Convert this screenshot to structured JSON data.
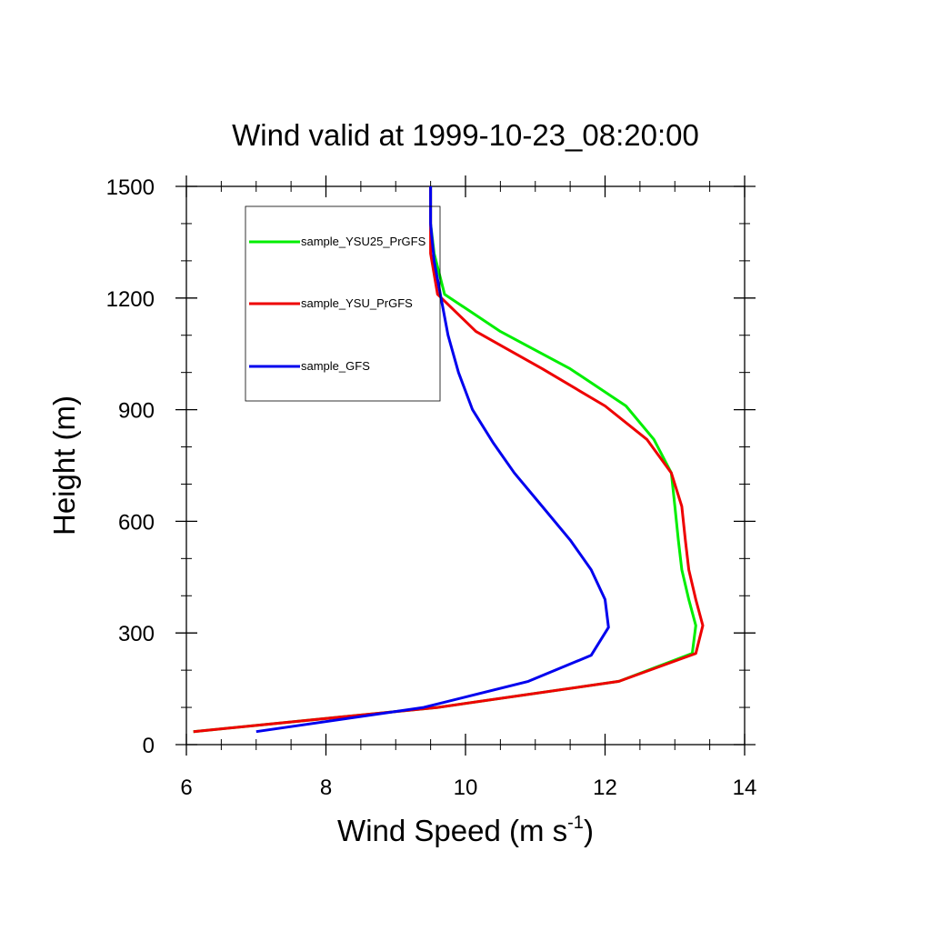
{
  "chart_data": {
    "type": "line",
    "title": "Wind valid at 1999-10-23_08:20:00",
    "xlabel_main": "Wind Speed (m s",
    "xlabel_sup": "-1",
    "xlabel_close": ")",
    "ylabel": "Height (m)",
    "xlim": [
      6,
      14
    ],
    "ylim": [
      0,
      1500
    ],
    "xticks": [
      6,
      8,
      10,
      12,
      14
    ],
    "yticks": [
      0,
      300,
      600,
      900,
      1200,
      1500
    ],
    "xtick_labels": [
      "6",
      "8",
      "10",
      "12",
      "14"
    ],
    "ytick_labels": [
      "0",
      "300",
      "600",
      "900",
      "1200",
      "1500"
    ],
    "legend_position": "top-left",
    "series": [
      {
        "name": "sample_YSU25_PrGFS",
        "color": "#00ee00",
        "points": [
          [
            6.1,
            35
          ],
          [
            9.6,
            100
          ],
          [
            12.2,
            170
          ],
          [
            13.25,
            245
          ],
          [
            13.3,
            320
          ],
          [
            13.2,
            390
          ],
          [
            13.1,
            470
          ],
          [
            13.05,
            550
          ],
          [
            13.0,
            640
          ],
          [
            12.95,
            730
          ],
          [
            12.7,
            820
          ],
          [
            12.3,
            910
          ],
          [
            11.5,
            1010
          ],
          [
            10.5,
            1110
          ],
          [
            9.7,
            1210
          ],
          [
            9.55,
            1320
          ],
          [
            9.5,
            1400
          ],
          [
            9.5,
            1500
          ]
        ]
      },
      {
        "name": "sample_YSU_PrGFS",
        "color": "#ee0000",
        "points": [
          [
            6.1,
            35
          ],
          [
            9.6,
            100
          ],
          [
            12.2,
            170
          ],
          [
            13.3,
            245
          ],
          [
            13.4,
            320
          ],
          [
            13.3,
            390
          ],
          [
            13.2,
            470
          ],
          [
            13.15,
            550
          ],
          [
            13.1,
            640
          ],
          [
            12.95,
            730
          ],
          [
            12.6,
            820
          ],
          [
            12.0,
            910
          ],
          [
            11.1,
            1010
          ],
          [
            10.15,
            1110
          ],
          [
            9.6,
            1210
          ],
          [
            9.5,
            1320
          ],
          [
            9.5,
            1400
          ],
          [
            9.5,
            1500
          ]
        ]
      },
      {
        "name": "sample_GFS",
        "color": "#0000ee",
        "points": [
          [
            7.0,
            35
          ],
          [
            9.4,
            100
          ],
          [
            10.9,
            170
          ],
          [
            11.8,
            240
          ],
          [
            12.05,
            315
          ],
          [
            12.0,
            390
          ],
          [
            11.8,
            470
          ],
          [
            11.5,
            550
          ],
          [
            11.1,
            640
          ],
          [
            10.7,
            730
          ],
          [
            10.4,
            810
          ],
          [
            10.1,
            900
          ],
          [
            9.9,
            1000
          ],
          [
            9.75,
            1100
          ],
          [
            9.65,
            1200
          ],
          [
            9.55,
            1300
          ],
          [
            9.5,
            1400
          ],
          [
            9.5,
            1500
          ]
        ]
      }
    ]
  }
}
